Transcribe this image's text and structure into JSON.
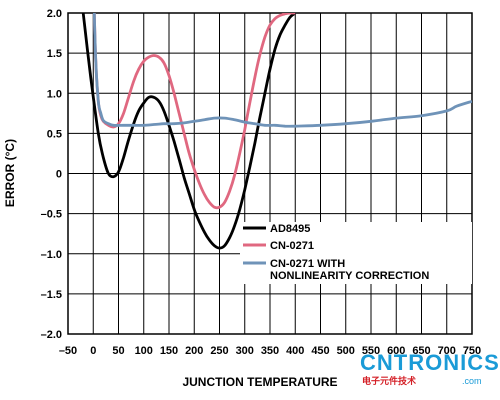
{
  "chart_data": {
    "type": "line",
    "title": "",
    "xlabel": "JUNCTION TEMPERATURE",
    "ylabel": "ERROR (°C)",
    "xlim": [
      -50,
      750
    ],
    "ylim": [
      -2.0,
      2.0
    ],
    "x_ticks": [
      "–50",
      "0",
      "50",
      "100",
      "150",
      "200",
      "250",
      "300",
      "350",
      "400",
      "450",
      "500",
      "550",
      "600",
      "650",
      "700",
      "750"
    ],
    "y_ticks": [
      "2.0",
      "1.5",
      "1.0",
      "0.5",
      "0",
      "–0.5",
      "–1.0",
      "–1.5",
      "–2.0"
    ],
    "x_tick_values": [
      -50,
      0,
      50,
      100,
      150,
      200,
      250,
      300,
      350,
      400,
      450,
      500,
      550,
      600,
      650,
      700,
      750
    ],
    "y_tick_values": [
      2.0,
      1.5,
      1.0,
      0.5,
      0,
      -0.5,
      -1.0,
      -1.5,
      -2.0
    ],
    "grid": true,
    "legend_position": "right",
    "series": [
      {
        "name": "AD8495",
        "color": "#000000",
        "x": [
          -20,
          -5,
          10,
          20,
          30,
          40,
          50,
          60,
          70,
          80,
          90,
          100,
          110,
          120,
          130,
          140,
          150,
          160,
          170,
          180,
          190,
          200,
          210,
          220,
          230,
          240,
          250,
          260,
          270,
          280,
          290,
          300,
          310,
          320,
          330,
          340,
          350,
          360,
          370,
          380,
          390,
          400
        ],
        "y": [
          2.0,
          1.2,
          0.5,
          0.2,
          0.0,
          -0.04,
          0.02,
          0.2,
          0.42,
          0.62,
          0.78,
          0.88,
          0.95,
          0.95,
          0.9,
          0.78,
          0.6,
          0.4,
          0.18,
          -0.05,
          -0.25,
          -0.45,
          -0.6,
          -0.73,
          -0.83,
          -0.9,
          -0.93,
          -0.9,
          -0.8,
          -0.65,
          -0.45,
          -0.2,
          0.08,
          0.38,
          0.7,
          1.0,
          1.3,
          1.55,
          1.73,
          1.85,
          1.95,
          2.0
        ]
      },
      {
        "name": "CN-0271",
        "color": "#e06880",
        "x": [
          2,
          5,
          10,
          15,
          20,
          30,
          40,
          50,
          60,
          70,
          80,
          90,
          100,
          110,
          120,
          130,
          140,
          150,
          160,
          170,
          180,
          190,
          200,
          210,
          220,
          230,
          240,
          250,
          260,
          270,
          280,
          290,
          300,
          310,
          320,
          330,
          340,
          350,
          360,
          370,
          380,
          390,
          400
        ],
        "y": [
          2.0,
          1.4,
          0.9,
          0.72,
          0.65,
          0.6,
          0.58,
          0.62,
          0.75,
          0.95,
          1.15,
          1.3,
          1.4,
          1.45,
          1.47,
          1.45,
          1.38,
          1.22,
          1.0,
          0.75,
          0.5,
          0.25,
          0.05,
          -0.12,
          -0.26,
          -0.36,
          -0.42,
          -0.42,
          -0.36,
          -0.22,
          -0.02,
          0.25,
          0.55,
          0.88,
          1.2,
          1.48,
          1.7,
          1.85,
          1.93,
          1.97,
          1.99,
          2.0,
          2.0
        ]
      },
      {
        "name": "CN-0271 WITH NONLINEARITY CORRECTION",
        "color": "#6f93b8",
        "x": [
          2,
          5,
          10,
          15,
          20,
          30,
          40,
          60,
          80,
          100,
          120,
          140,
          160,
          180,
          200,
          220,
          240,
          260,
          280,
          300,
          320,
          340,
          360,
          380,
          400,
          450,
          500,
          550,
          600,
          650,
          700,
          720,
          750
        ],
        "y": [
          2.0,
          1.4,
          0.9,
          0.75,
          0.66,
          0.62,
          0.6,
          0.6,
          0.6,
          0.6,
          0.61,
          0.62,
          0.62,
          0.63,
          0.65,
          0.67,
          0.69,
          0.69,
          0.67,
          0.64,
          0.62,
          0.6,
          0.6,
          0.59,
          0.59,
          0.6,
          0.62,
          0.65,
          0.69,
          0.72,
          0.78,
          0.84,
          0.9
        ]
      }
    ]
  },
  "logo": {
    "main": "CNTRONICS",
    "sub": "电子元件技术",
    "com": ".com"
  }
}
